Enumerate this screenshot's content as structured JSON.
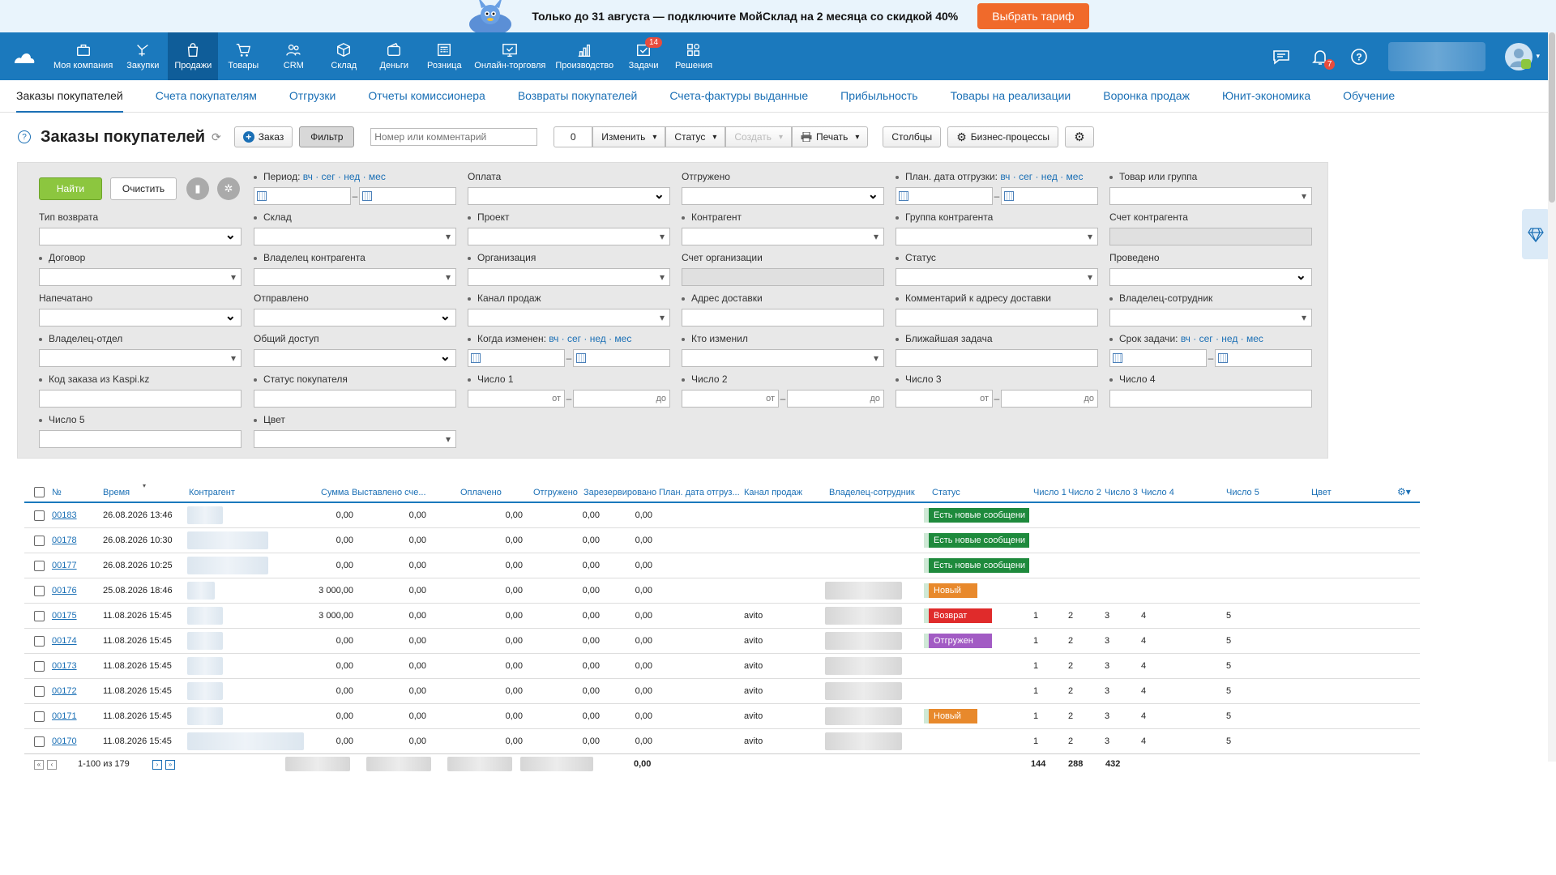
{
  "promo": {
    "text": "Только до 31 августа — подключите МойСклад на 2 месяца со скидкой 40%",
    "button": "Выбрать тариф"
  },
  "nav": {
    "items": [
      {
        "label": "Моя компания",
        "icon": "briefcase-icon"
      },
      {
        "label": "Закупки",
        "icon": "purchases-icon"
      },
      {
        "label": "Продажи",
        "icon": "bag-icon",
        "active": true
      },
      {
        "label": "Товары",
        "icon": "cart-icon"
      },
      {
        "label": "CRM",
        "icon": "people-icon"
      },
      {
        "label": "Склад",
        "icon": "box-icon"
      },
      {
        "label": "Деньги",
        "icon": "wallet-icon"
      },
      {
        "label": "Розница",
        "icon": "register-icon"
      },
      {
        "label": "Онлайн-торговля",
        "icon": "online-store-icon"
      },
      {
        "label": "Производство",
        "icon": "chart-icon"
      },
      {
        "label": "Задачи",
        "icon": "tasks-icon",
        "badge": "14"
      },
      {
        "label": "Решения",
        "icon": "grid-icon"
      }
    ],
    "notifications_badge": "7"
  },
  "subnav": [
    "Заказы покупателей",
    "Счета покупателям",
    "Отгрузки",
    "Отчеты комиссионера",
    "Возвраты покупателей",
    "Счета-фактуры выданные",
    "Прибыльность",
    "Товары на реализации",
    "Воронка продаж",
    "Юнит-экономика",
    "Обучение"
  ],
  "toolbar": {
    "title": "Заказы покупателей",
    "order": "Заказ",
    "filter": "Фильтр",
    "search_placeholder": "Номер или комментарий",
    "count": "0",
    "change": "Изменить",
    "status": "Статус",
    "create": "Создать",
    "print": "Печать",
    "columns": "Столбцы",
    "bp": "Бизнес-процессы"
  },
  "filter": {
    "find": "Найти",
    "clear": "Очистить",
    "period_links": "вч · сег · нед · мес",
    "from": "от",
    "to": "до",
    "labels": {
      "period": "Период:",
      "payment": "Оплата",
      "shipped": "Отгружено",
      "plan_date": "План. дата отгрузки:",
      "goods": "Товар или группа",
      "return_type": "Тип возврата",
      "warehouse": "Склад",
      "project": "Проект",
      "counterparty": "Контрагент",
      "cp_group": "Группа контрагента",
      "cp_account": "Счет контрагента",
      "contract": "Договор",
      "cp_owner": "Владелец контрагента",
      "organization": "Организация",
      "org_account": "Счет организации",
      "status": "Статус",
      "posted": "Проведено",
      "printed": "Напечатано",
      "sent": "Отправлено",
      "channel": "Канал продаж",
      "address": "Адрес доставки",
      "address_comment": "Комментарий к адресу доставки",
      "owner_employee": "Владелец-сотрудник",
      "owner_dept": "Владелец-отдел",
      "shared": "Общий доступ",
      "changed_when": "Когда изменен:",
      "changed_who": "Кто изменил",
      "next_task": "Ближайшая задача",
      "task_deadline": "Срок задачи:",
      "kaspi": "Код заказа из Kaspi.kz",
      "buyer_status": "Статус покупателя",
      "n1": "Число 1",
      "n2": "Число 2",
      "n3": "Число 3",
      "n4": "Число 4",
      "n5": "Число 5",
      "color": "Цвет"
    }
  },
  "table": {
    "headers": {
      "num": "№",
      "time": "Время",
      "counterparty": "Контрагент",
      "sum": "Сумма",
      "invoiced": "Выставлено сче...",
      "paid": "Оплачено",
      "shipped": "Отгружено",
      "reserved": "Зарезервировано",
      "plan": "План. дата отгруз...",
      "channel": "Канал продаж",
      "owner": "Владелец-сотрудник",
      "status": "Статус",
      "n1": "Число 1",
      "n2": "Число 2",
      "n3": "Число 3",
      "n4": "Число 4",
      "n5": "Число 5",
      "color": "Цвет"
    },
    "rows": [
      {
        "num": "00183",
        "time": "26.08.2026 13:46",
        "sum": "0,00",
        "inv": "0,00",
        "paid": "0,00",
        "ship": "0,00",
        "res": "0,00",
        "channel": "",
        "status": "Есть новые сообщени",
        "status_color": "#1e8a3c",
        "owner": false,
        "n": [
          "",
          "",
          "",
          "",
          ""
        ]
      },
      {
        "num": "00178",
        "time": "26.08.2026 10:30",
        "sum": "0,00",
        "inv": "0,00",
        "paid": "0,00",
        "ship": "0,00",
        "res": "0,00",
        "channel": "",
        "status": "Есть новые сообщени",
        "status_color": "#1e8a3c",
        "owner": false,
        "n": [
          "",
          "",
          "",
          "",
          ""
        ]
      },
      {
        "num": "00177",
        "time": "26.08.2026 10:25",
        "sum": "0,00",
        "inv": "0,00",
        "paid": "0,00",
        "ship": "0,00",
        "res": "0,00",
        "channel": "",
        "status": "Есть новые сообщени",
        "status_color": "#1e8a3c",
        "owner": false,
        "n": [
          "",
          "",
          "",
          "",
          ""
        ]
      },
      {
        "num": "00176",
        "time": "25.08.2026 18:46",
        "sum": "3 000,00",
        "inv": "0,00",
        "paid": "0,00",
        "ship": "0,00",
        "res": "0,00",
        "channel": "",
        "status": "Новый",
        "status_color": "#e8892c",
        "owner": true,
        "n": [
          "",
          "",
          "",
          "",
          ""
        ]
      },
      {
        "num": "00175",
        "time": "11.08.2026 15:45",
        "sum": "3 000,00",
        "inv": "0,00",
        "paid": "0,00",
        "ship": "0,00",
        "res": "0,00",
        "channel": "avito",
        "status": "Возврат",
        "status_color": "#e02b2b",
        "owner": true,
        "n": [
          "1",
          "2",
          "3",
          "4",
          "5"
        ]
      },
      {
        "num": "00174",
        "time": "11.08.2026 15:45",
        "sum": "0,00",
        "inv": "0,00",
        "paid": "0,00",
        "ship": "0,00",
        "res": "0,00",
        "channel": "avito",
        "status": "Отгружен",
        "status_color": "#a25bc4",
        "owner": true,
        "n": [
          "1",
          "2",
          "3",
          "4",
          "5"
        ]
      },
      {
        "num": "00173",
        "time": "11.08.2026 15:45",
        "sum": "0,00",
        "inv": "0,00",
        "paid": "0,00",
        "ship": "0,00",
        "res": "0,00",
        "channel": "avito",
        "status": "",
        "status_color": "",
        "owner": true,
        "n": [
          "1",
          "2",
          "3",
          "4",
          "5"
        ]
      },
      {
        "num": "00172",
        "time": "11.08.2026 15:45",
        "sum": "0,00",
        "inv": "0,00",
        "paid": "0,00",
        "ship": "0,00",
        "res": "0,00",
        "channel": "avito",
        "status": "",
        "status_color": "",
        "owner": true,
        "n": [
          "1",
          "2",
          "3",
          "4",
          "5"
        ]
      },
      {
        "num": "00171",
        "time": "11.08.2026 15:45",
        "sum": "0,00",
        "inv": "0,00",
        "paid": "0,00",
        "ship": "0,00",
        "res": "0,00",
        "channel": "avito",
        "status": "Новый",
        "status_color": "#e8892c",
        "owner": true,
        "n": [
          "1",
          "2",
          "3",
          "4",
          "5"
        ]
      },
      {
        "num": "00170",
        "time": "11.08.2026 15:45",
        "sum": "0,00",
        "inv": "0,00",
        "paid": "0,00",
        "ship": "0,00",
        "res": "0,00",
        "channel": "avito",
        "status": "",
        "status_color": "",
        "owner": true,
        "n": [
          "1",
          "2",
          "3",
          "4",
          "5"
        ]
      }
    ],
    "footer": {
      "range": "1-100 из 179",
      "total_sum": "0,00",
      "t1": "144",
      "t2": "288",
      "t3": "432"
    }
  }
}
